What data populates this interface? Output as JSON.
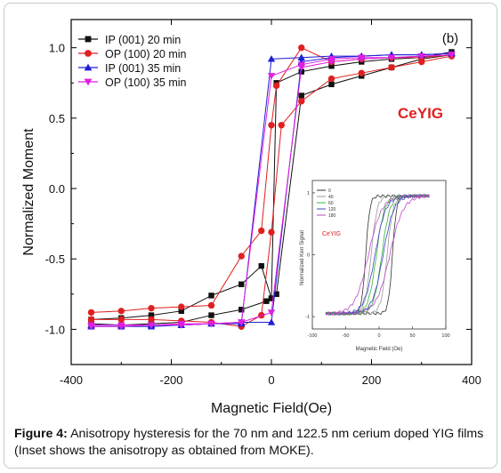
{
  "chart_data": [
    {
      "type": "line",
      "panel_label": "(b)",
      "annotation": "CeYIG",
      "annotation_color": "#e02020",
      "xlabel": "Magnetic Field(Oe)",
      "ylabel": "Normalized Moment",
      "xlim": [
        -400,
        400
      ],
      "ylim": [
        -1.25,
        1.2
      ],
      "xticks": [
        -400,
        -200,
        0,
        200,
        400
      ],
      "xtick_labels": [
        "-400",
        "-200",
        "0",
        "200",
        "400"
      ],
      "yticks": [
        1.0,
        0.5,
        0.0,
        -0.5,
        -1.0
      ],
      "ytick_labels": [
        "1.0",
        "0.5",
        "0.0",
        "-0.5",
        "-1.0"
      ],
      "legend_position": "top-left",
      "grid": false,
      "series": [
        {
          "name": "IP (001) 20 min",
          "color": "#111111",
          "marker": "square",
          "x": [
            -360,
            -300,
            -240,
            -180,
            -120,
            -60,
            -10,
            0,
            10,
            60,
            120,
            180,
            240,
            300,
            360
          ],
          "y": [
            -0.96,
            -0.97,
            -0.96,
            -0.95,
            -0.9,
            -0.86,
            -0.8,
            -0.78,
            0.75,
            0.83,
            0.87,
            0.9,
            0.92,
            0.93,
            0.97
          ],
          "x2": [
            -360,
            -300,
            -240,
            -180,
            -120,
            -60,
            -20,
            0,
            10,
            60,
            120,
            180,
            240,
            300,
            360
          ],
          "y2": [
            -0.93,
            -0.92,
            -0.9,
            -0.87,
            -0.76,
            -0.68,
            -0.55,
            -0.78,
            -0.75,
            0.66,
            0.74,
            0.8,
            0.86,
            0.92,
            0.95
          ]
        },
        {
          "name": "OP (100) 20 min",
          "color": "#e02020",
          "marker": "circle",
          "x": [
            -360,
            -300,
            -240,
            -180,
            -120,
            -60,
            -20,
            0,
            10,
            60,
            120,
            180,
            240,
            300,
            360
          ],
          "y": [
            -0.88,
            -0.87,
            -0.85,
            -0.84,
            -0.83,
            -0.48,
            -0.3,
            0.45,
            0.73,
            1.0,
            0.9,
            0.92,
            0.93,
            0.93,
            0.95
          ],
          "x2": [
            -360,
            -300,
            -240,
            -180,
            -120,
            -60,
            -20,
            0,
            20,
            60,
            120,
            180,
            240,
            300,
            360
          ],
          "y2": [
            -0.93,
            -0.93,
            -0.93,
            -0.94,
            -0.95,
            -0.98,
            -0.9,
            -0.31,
            0.45,
            0.62,
            0.78,
            0.82,
            0.86,
            0.9,
            0.94
          ]
        },
        {
          "name": "IP (001) 35 min",
          "color": "#1f1fd6",
          "marker": "triangle-up",
          "x": [
            -360,
            -300,
            -240,
            -180,
            -120,
            -60,
            0,
            60,
            120,
            180,
            240,
            300,
            360
          ],
          "y": [
            -0.98,
            -0.98,
            -0.98,
            -0.97,
            -0.96,
            -0.96,
            0.92,
            0.93,
            0.94,
            0.94,
            0.95,
            0.95,
            0.96
          ],
          "x2": [
            -360,
            -300,
            -240,
            -180,
            -120,
            -60,
            0,
            60,
            120,
            180,
            240,
            300,
            360
          ],
          "y2": [
            -0.97,
            -0.97,
            -0.97,
            -0.97,
            -0.96,
            -0.95,
            -0.95,
            0.9,
            0.93,
            0.94,
            0.95,
            0.95,
            0.96
          ]
        },
        {
          "name": "OP (100) 35 min",
          "color": "#e01ee0",
          "marker": "triangle-down",
          "x": [
            -360,
            -300,
            -240,
            -180,
            -120,
            -60,
            0,
            60,
            120,
            180,
            240,
            300,
            360
          ],
          "y": [
            -0.97,
            -0.97,
            -0.97,
            -0.96,
            -0.96,
            -0.95,
            0.8,
            0.88,
            0.92,
            0.93,
            0.93,
            0.94,
            0.95
          ],
          "x2": [
            -360,
            -300,
            -240,
            -180,
            -120,
            -60,
            0,
            60,
            120,
            180,
            240,
            300,
            360
          ],
          "y2": [
            -0.98,
            -0.98,
            -0.97,
            -0.97,
            -0.96,
            -0.95,
            -0.88,
            0.86,
            0.9,
            0.92,
            0.93,
            0.94,
            0.95
          ]
        }
      ]
    },
    {
      "type": "line",
      "inset": true,
      "annotation": "CeYIG",
      "xlabel": "Magnetic Field (Oe)",
      "ylabel": "Normalized Kerr Signal",
      "xlim": [
        -100,
        100
      ],
      "ylim": [
        -1.2,
        1.2
      ],
      "xtick_labels": [
        "-100",
        "-50",
        "0",
        "50",
        "100"
      ],
      "ytick_labels": [
        "1",
        "0",
        "-1"
      ],
      "legend": [
        "0",
        "40",
        "60",
        "120",
        "180"
      ],
      "series_colors": [
        "#333333",
        "#9a9a9a",
        "#32b832",
        "#4444cc",
        "#c04bc0"
      ]
    }
  ],
  "caption": {
    "label": "Figure 4:",
    "text": " Anisotropy hysteresis for the 70 nm and 122.5 nm cerium doped YIG films (Inset shows the anisotropy as obtained from MOKE)."
  }
}
